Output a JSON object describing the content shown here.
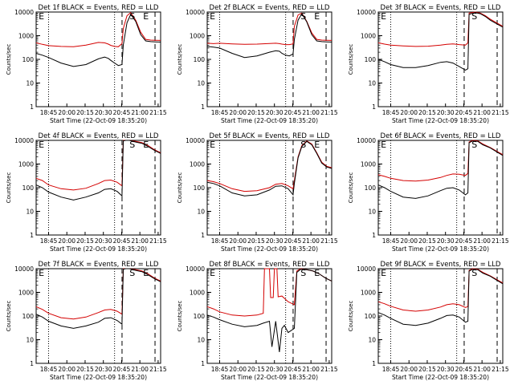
{
  "chart_data": [
    {
      "type": "line",
      "title": "Det 1f BLACK = Events, RED = LLD",
      "xlabel": "Start Time (22-Oct-09 18:35:20)",
      "ylabel": "Counts/sec",
      "yscale": "log",
      "ylim": [
        1,
        10000
      ],
      "xticks": [
        "18:45",
        "20:00",
        "20:15",
        "20:30",
        "20:45",
        "21:00",
        "21:15"
      ],
      "marker_labels": [
        "E",
        "S",
        "E"
      ],
      "series": [
        {
          "color": "#d40000",
          "x": [
            0,
            0.05,
            0.1,
            0.2,
            0.3,
            0.4,
            0.5,
            0.55,
            0.58,
            0.6,
            0.63,
            0.66,
            0.69,
            0.7,
            0.73,
            0.76,
            0.8,
            0.84,
            0.88,
            0.92,
            0.96,
            1
          ],
          "y": [
            500,
            430,
            380,
            350,
            340,
            400,
            520,
            500,
            440,
            390,
            350,
            340,
            460,
            2000,
            7000,
            9500,
            4500,
            1400,
            700,
            650,
            640,
            630
          ]
        },
        {
          "color": "#000000",
          "x": [
            0,
            0.05,
            0.1,
            0.2,
            0.3,
            0.4,
            0.5,
            0.55,
            0.58,
            0.6,
            0.63,
            0.66,
            0.69,
            0.7,
            0.73,
            0.76,
            0.8,
            0.84,
            0.88,
            0.92,
            0.96,
            1
          ],
          "y": [
            180,
            150,
            120,
            70,
            50,
            60,
            105,
            125,
            110,
            90,
            70,
            55,
            60,
            400,
            3500,
            8000,
            4000,
            1100,
            600,
            560,
            550,
            540
          ]
        }
      ]
    },
    {
      "type": "line",
      "title": "Det 2f BLACK = Events, RED = LLD",
      "xlabel": "Start Time (22-Oct-09 18:35:20)",
      "ylabel": "Counts/sec",
      "yscale": "log",
      "ylim": [
        1,
        10000
      ],
      "xticks": [
        "18:45",
        "20:00",
        "20:15",
        "20:30",
        "20:45",
        "21:00",
        "21:15"
      ],
      "marker_labels": [
        "E",
        "S",
        "E"
      ],
      "series": [
        {
          "color": "#d40000",
          "x": [
            0,
            0.05,
            0.1,
            0.2,
            0.3,
            0.4,
            0.5,
            0.55,
            0.58,
            0.6,
            0.63,
            0.66,
            0.69,
            0.7,
            0.73,
            0.76,
            0.8,
            0.84,
            0.88,
            0.92,
            0.96,
            1
          ],
          "y": [
            480,
            460,
            480,
            450,
            430,
            440,
            470,
            480,
            460,
            440,
            420,
            420,
            450,
            2500,
            7500,
            9000,
            4000,
            1300,
            700,
            650,
            640,
            630
          ]
        },
        {
          "color": "#000000",
          "x": [
            0,
            0.05,
            0.1,
            0.2,
            0.3,
            0.4,
            0.5,
            0.55,
            0.58,
            0.6,
            0.63,
            0.66,
            0.69,
            0.7,
            0.73,
            0.76,
            0.8,
            0.84,
            0.88,
            0.92,
            0.96,
            1
          ],
          "y": [
            350,
            330,
            300,
            180,
            120,
            140,
            200,
            230,
            220,
            180,
            150,
            140,
            170,
            700,
            4500,
            8500,
            3800,
            1100,
            600,
            560,
            550,
            540
          ]
        }
      ]
    },
    {
      "type": "line",
      "title": "Det 3f BLACK = Events, RED = LLD",
      "xlabel": "Start Time (22-Oct-09 18:35:20)",
      "ylabel": "Counts/sec",
      "yscale": "log",
      "ylim": [
        1,
        10000
      ],
      "xticks": [
        "18:45",
        "20:00",
        "20:15",
        "20:30",
        "20:45",
        "21:00",
        "21:15"
      ],
      "marker_labels": [
        "S",
        "E"
      ],
      "series": [
        {
          "color": "#d40000",
          "x": [
            0,
            0.05,
            0.1,
            0.2,
            0.3,
            0.4,
            0.5,
            0.55,
            0.6,
            0.65,
            0.7,
            0.72,
            0.73,
            0.78,
            0.82,
            0.86,
            0.9,
            0.95,
            1
          ],
          "y": [
            500,
            440,
            400,
            370,
            350,
            360,
            400,
            430,
            450,
            420,
            400,
            500,
            9000,
            10000,
            9000,
            7000,
            5000,
            3500,
            2500
          ]
        },
        {
          "color": "#000000",
          "x": [
            0,
            0.05,
            0.1,
            0.2,
            0.3,
            0.4,
            0.5,
            0.55,
            0.6,
            0.65,
            0.7,
            0.72,
            0.73,
            0.78,
            0.82,
            0.86,
            0.9,
            0.95,
            1
          ],
          "y": [
            100,
            80,
            60,
            45,
            45,
            55,
            75,
            80,
            70,
            50,
            35,
            40,
            8000,
            9500,
            8500,
            6500,
            4500,
            3200,
            2300
          ]
        }
      ]
    },
    {
      "type": "line",
      "title": "Det 4f BLACK = Events, RED = LLD",
      "xlabel": "Start Time (22-Oct-09 18:35:20)",
      "ylabel": "Counts/sec",
      "yscale": "log",
      "ylim": [
        1,
        10000
      ],
      "xticks": [
        "18:45",
        "20:00",
        "20:15",
        "20:30",
        "20:45",
        "21:00",
        "21:15"
      ],
      "marker_labels": [
        "E",
        "S",
        "E"
      ],
      "series": [
        {
          "color": "#d40000",
          "x": [
            0,
            0.05,
            0.1,
            0.2,
            0.3,
            0.4,
            0.5,
            0.55,
            0.6,
            0.65,
            0.69,
            0.7,
            0.72,
            0.75,
            0.8,
            0.85,
            0.9,
            0.95,
            1
          ],
          "y": [
            250,
            200,
            130,
            90,
            80,
            95,
            150,
            200,
            210,
            170,
            120,
            10000,
            10000,
            10000,
            9000,
            8000,
            6000,
            4000,
            3000
          ]
        },
        {
          "color": "#000000",
          "x": [
            0,
            0.05,
            0.1,
            0.2,
            0.3,
            0.4,
            0.5,
            0.55,
            0.6,
            0.65,
            0.69,
            0.7,
            0.72,
            0.75,
            0.8,
            0.85,
            0.9,
            0.95,
            1
          ],
          "y": [
            130,
            100,
            65,
            40,
            30,
            40,
            60,
            85,
            90,
            70,
            45,
            9500,
            10000,
            10000,
            8500,
            7500,
            5500,
            3800,
            2800
          ]
        }
      ]
    },
    {
      "type": "line",
      "title": "Det 5f BLACK = Events, RED = LLD",
      "xlabel": "Start Time (22-Oct-09 18:35:20)",
      "ylabel": "Counts/sec",
      "yscale": "log",
      "ylim": [
        1,
        10000
      ],
      "xticks": [
        "18:45",
        "20:00",
        "20:15",
        "20:30",
        "20:45",
        "21:00",
        "21:15"
      ],
      "marker_labels": [
        "E",
        "S",
        "E"
      ],
      "series": [
        {
          "color": "#d40000",
          "x": [
            0,
            0.05,
            0.1,
            0.2,
            0.3,
            0.4,
            0.5,
            0.55,
            0.6,
            0.65,
            0.69,
            0.7,
            0.73,
            0.76,
            0.8,
            0.84,
            0.88,
            0.92,
            0.96,
            1
          ],
          "y": [
            200,
            180,
            150,
            90,
            70,
            75,
            100,
            140,
            150,
            120,
            90,
            200,
            2000,
            6000,
            9500,
            7000,
            3000,
            1200,
            800,
            700
          ]
        },
        {
          "color": "#000000",
          "x": [
            0,
            0.05,
            0.1,
            0.2,
            0.3,
            0.4,
            0.5,
            0.55,
            0.6,
            0.65,
            0.69,
            0.7,
            0.73,
            0.76,
            0.8,
            0.84,
            0.88,
            0.92,
            0.96,
            1
          ],
          "y": [
            170,
            150,
            120,
            60,
            45,
            50,
            80,
            115,
            120,
            90,
            50,
            150,
            1800,
            5500,
            9000,
            6500,
            2800,
            1100,
            750,
            650
          ]
        }
      ]
    },
    {
      "type": "line",
      "title": "Det 6f BLACK = Events, RED = LLD",
      "xlabel": "Start Time (22-Oct-09 18:35:20)",
      "ylabel": "Counts/sec",
      "yscale": "log",
      "ylim": [
        1,
        10000
      ],
      "xticks": [
        "18:45",
        "20:00",
        "20:15",
        "20:30",
        "20:45",
        "21:00",
        "21:15"
      ],
      "marker_labels": [
        "S",
        "E"
      ],
      "series": [
        {
          "color": "#d40000",
          "x": [
            0,
            0.05,
            0.1,
            0.2,
            0.3,
            0.4,
            0.5,
            0.55,
            0.6,
            0.65,
            0.7,
            0.72,
            0.73,
            0.76,
            0.8,
            0.84,
            0.9,
            0.95,
            1
          ],
          "y": [
            350,
            300,
            250,
            200,
            190,
            210,
            270,
            330,
            380,
            370,
            330,
            400,
            8500,
            10000,
            9500,
            7000,
            5000,
            3500,
            2500
          ]
        },
        {
          "color": "#000000",
          "x": [
            0,
            0.05,
            0.1,
            0.2,
            0.3,
            0.4,
            0.5,
            0.55,
            0.6,
            0.65,
            0.7,
            0.72,
            0.73,
            0.76,
            0.8,
            0.84,
            0.9,
            0.95,
            1
          ],
          "y": [
            130,
            100,
            70,
            40,
            35,
            45,
            75,
            95,
            100,
            80,
            50,
            60,
            8000,
            9500,
            9000,
            6500,
            4800,
            3300,
            2300
          ]
        }
      ]
    },
    {
      "type": "line",
      "title": "Det 7f BLACK = Events, RED = LLD",
      "xlabel": "Start Time (22-Oct-09 18:35:20)",
      "ylabel": "Counts/sec",
      "yscale": "log",
      "ylim": [
        1,
        10000
      ],
      "xticks": [
        "18:45",
        "20:00",
        "20:15",
        "20:30",
        "20:45",
        "21:00",
        "21:15"
      ],
      "marker_labels": [
        "E",
        "S",
        "E"
      ],
      "series": [
        {
          "color": "#d40000",
          "x": [
            0,
            0.05,
            0.1,
            0.2,
            0.3,
            0.4,
            0.5,
            0.55,
            0.6,
            0.65,
            0.69,
            0.7,
            0.72,
            0.75,
            0.8,
            0.85,
            0.9,
            0.95,
            1
          ],
          "y": [
            250,
            190,
            130,
            85,
            75,
            90,
            140,
            180,
            190,
            160,
            120,
            10000,
            10000,
            10000,
            9000,
            8000,
            6000,
            4000,
            3000
          ]
        },
        {
          "color": "#000000",
          "x": [
            0,
            0.05,
            0.1,
            0.2,
            0.3,
            0.4,
            0.5,
            0.55,
            0.6,
            0.65,
            0.69,
            0.7,
            0.72,
            0.75,
            0.8,
            0.85,
            0.9,
            0.95,
            1
          ],
          "y": [
            120,
            90,
            60,
            38,
            30,
            38,
            55,
            80,
            85,
            65,
            45,
            9500,
            10000,
            10000,
            8500,
            7500,
            5500,
            3800,
            2800
          ]
        }
      ]
    },
    {
      "type": "line",
      "title": "Det 8f BLACK = Events, RED = LLD",
      "xlabel": "Start Time (22-Oct-09 18:35:20)",
      "ylabel": "Counts/sec",
      "yscale": "log",
      "ylim": [
        1,
        10000
      ],
      "xticks": [
        "18:45",
        "20:00",
        "20:15",
        "20:30",
        "20:45",
        "21:00",
        "21:15"
      ],
      "marker_labels": [
        "E",
        "S",
        "E"
      ],
      "series": [
        {
          "color": "#d40000",
          "x": [
            0,
            0.05,
            0.1,
            0.2,
            0.3,
            0.4,
            0.45,
            0.46,
            0.5,
            0.51,
            0.53,
            0.54,
            0.56,
            0.57,
            0.6,
            0.65,
            0.7,
            0.72,
            0.75,
            0.8,
            0.85,
            0.9,
            0.95,
            1
          ],
          "y": [
            250,
            200,
            150,
            110,
            100,
            110,
            130,
            10000,
            10000,
            600,
            600,
            10000,
            10000,
            650,
            700,
            400,
            300,
            8000,
            10000,
            9000,
            8000,
            6000,
            4000,
            3000
          ]
        },
        {
          "color": "#000000",
          "x": [
            0,
            0.05,
            0.1,
            0.2,
            0.3,
            0.4,
            0.45,
            0.5,
            0.52,
            0.55,
            0.58,
            0.6,
            0.62,
            0.65,
            0.7,
            0.72,
            0.75,
            0.8,
            0.85,
            0.9,
            0.95,
            1
          ],
          "y": [
            110,
            90,
            70,
            45,
            35,
            40,
            50,
            60,
            5,
            60,
            3,
            30,
            40,
            20,
            30,
            7000,
            9500,
            9000,
            8000,
            6000,
            4000,
            3000
          ]
        }
      ]
    },
    {
      "type": "line",
      "title": "Det 9f BLACK = Events, RED = LLD",
      "xlabel": "Start Time (22-Oct-09 18:35:20)",
      "ylabel": "Counts/sec",
      "yscale": "log",
      "ylim": [
        1,
        10000
      ],
      "xticks": [
        "18:45",
        "20:00",
        "20:15",
        "20:30",
        "20:45",
        "21:00",
        "21:15"
      ],
      "marker_labels": [
        "S",
        "E"
      ],
      "series": [
        {
          "color": "#d40000",
          "x": [
            0,
            0.05,
            0.1,
            0.2,
            0.3,
            0.4,
            0.5,
            0.55,
            0.6,
            0.65,
            0.7,
            0.72,
            0.73,
            0.76,
            0.8,
            0.84,
            0.9,
            0.95,
            1
          ],
          "y": [
            400,
            330,
            260,
            180,
            160,
            180,
            240,
            300,
            330,
            300,
            230,
            250,
            8500,
            10000,
            9500,
            7000,
            5000,
            3500,
            2500
          ]
        },
        {
          "color": "#000000",
          "x": [
            0,
            0.05,
            0.1,
            0.2,
            0.3,
            0.4,
            0.5,
            0.55,
            0.6,
            0.65,
            0.7,
            0.72,
            0.73,
            0.76,
            0.8,
            0.84,
            0.9,
            0.95,
            1
          ],
          "y": [
            140,
            110,
            80,
            45,
            40,
            50,
            80,
            105,
            110,
            90,
            55,
            60,
            8000,
            9500,
            9000,
            6500,
            4800,
            3300,
            2300
          ]
        }
      ]
    }
  ]
}
